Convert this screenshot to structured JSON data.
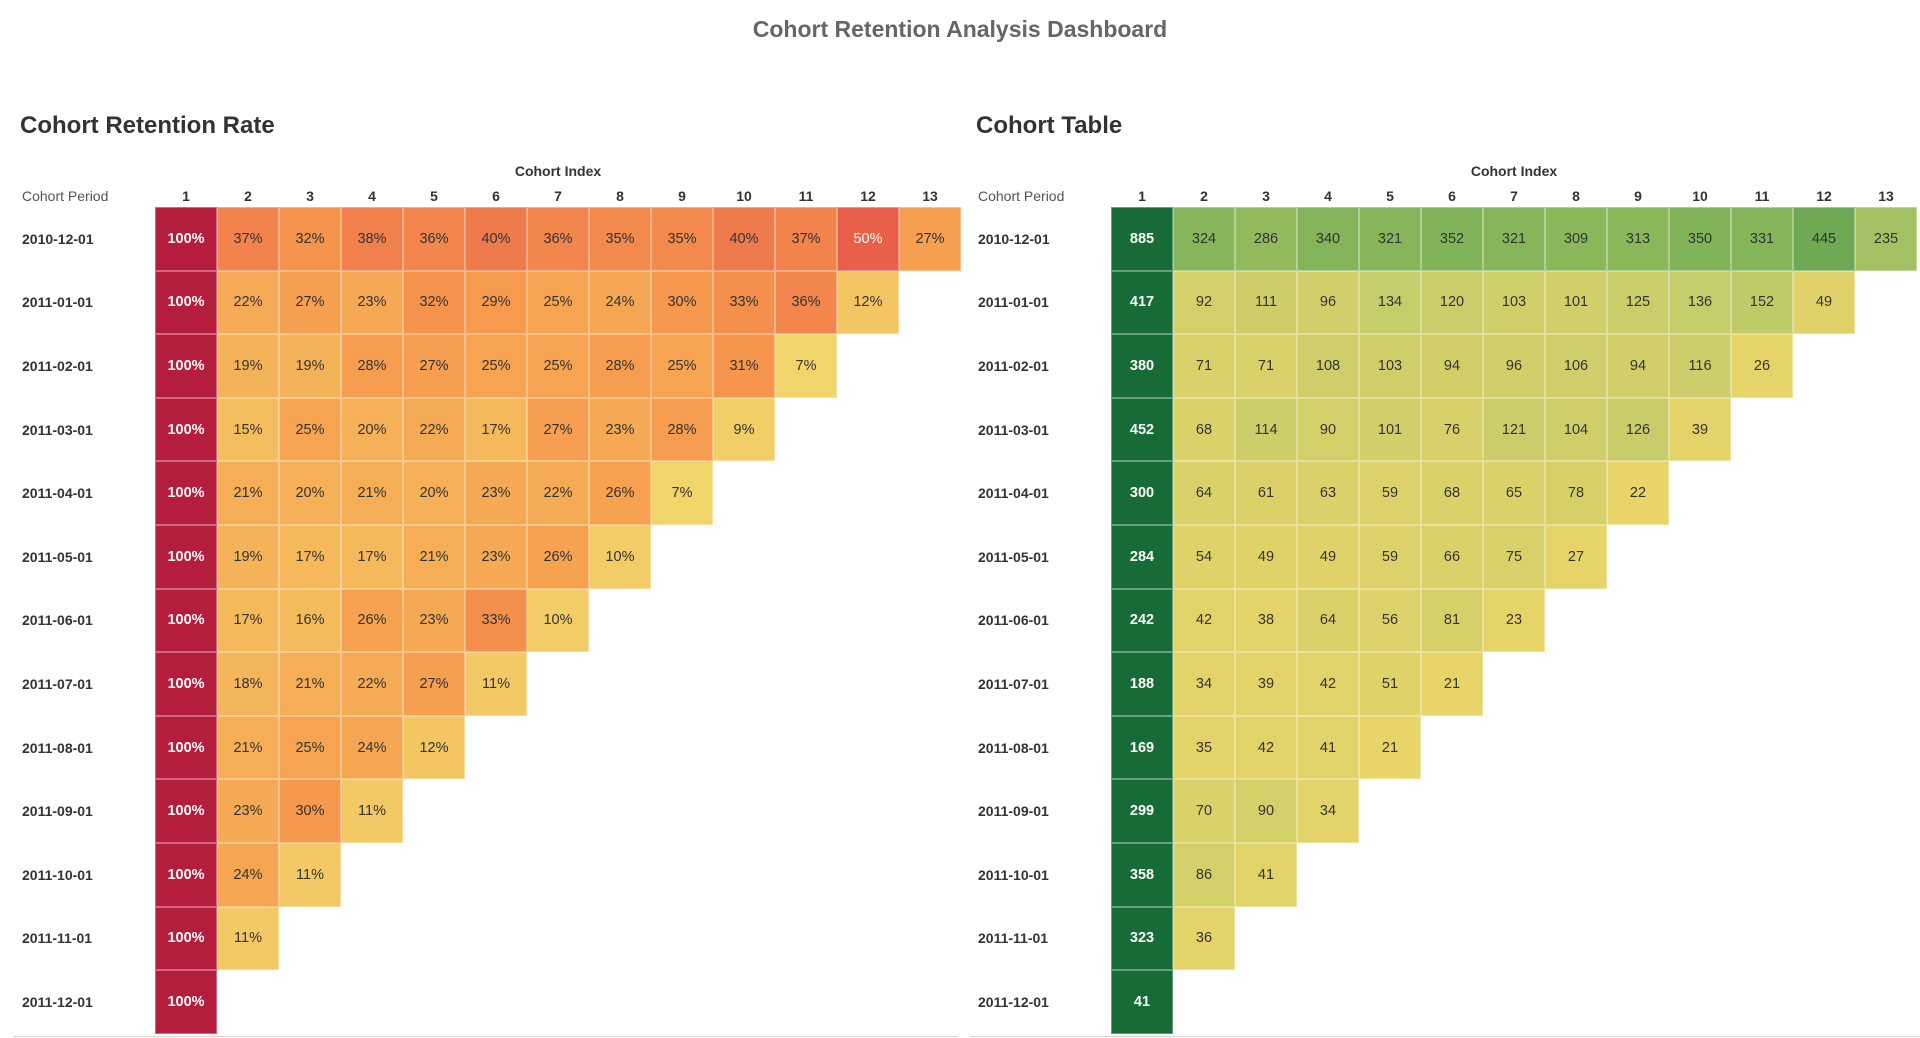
{
  "dashboard": {
    "title": "Cohort Retention Analysis Dashboard"
  },
  "periods": [
    "2010-12-01",
    "2011-01-01",
    "2011-02-01",
    "2011-03-01",
    "2011-04-01",
    "2011-05-01",
    "2011-06-01",
    "2011-07-01",
    "2011-08-01",
    "2011-09-01",
    "2011-10-01",
    "2011-11-01",
    "2011-12-01"
  ],
  "chart_data": [
    {
      "type": "heatmap",
      "title": "Cohort Retention Rate",
      "xlabel": "Cohort Index",
      "ylabel": "Cohort Period",
      "x": [
        "1",
        "2",
        "3",
        "4",
        "5",
        "6",
        "7",
        "8",
        "9",
        "10",
        "11",
        "12",
        "13"
      ],
      "unit": "%",
      "colorscale": "yellow-orange-red",
      "values": [
        [
          100,
          37,
          32,
          38,
          36,
          40,
          36,
          35,
          35,
          40,
          37,
          50,
          27
        ],
        [
          100,
          22,
          27,
          23,
          32,
          29,
          25,
          24,
          30,
          33,
          36,
          12
        ],
        [
          100,
          19,
          19,
          28,
          27,
          25,
          25,
          28,
          25,
          31,
          7
        ],
        [
          100,
          15,
          25,
          20,
          22,
          17,
          27,
          23,
          28,
          9
        ],
        [
          100,
          21,
          20,
          21,
          20,
          23,
          22,
          26,
          7
        ],
        [
          100,
          19,
          17,
          17,
          21,
          23,
          26,
          10
        ],
        [
          100,
          17,
          16,
          26,
          23,
          33,
          10
        ],
        [
          100,
          18,
          21,
          22,
          27,
          11
        ],
        [
          100,
          21,
          25,
          24,
          12
        ],
        [
          100,
          23,
          30,
          11
        ],
        [
          100,
          24,
          11
        ],
        [
          100,
          11
        ],
        [
          100
        ]
      ]
    },
    {
      "type": "heatmap",
      "title": "Cohort Table",
      "xlabel": "Cohort Index",
      "ylabel": "Cohort Period",
      "x": [
        "1",
        "2",
        "3",
        "4",
        "5",
        "6",
        "7",
        "8",
        "9",
        "10",
        "11",
        "12",
        "13"
      ],
      "unit": "",
      "colorscale": "yellow-green",
      "values": [
        [
          885,
          324,
          286,
          340,
          321,
          352,
          321,
          309,
          313,
          350,
          331,
          445,
          235
        ],
        [
          417,
          92,
          111,
          96,
          134,
          120,
          103,
          101,
          125,
          136,
          152,
          49
        ],
        [
          380,
          71,
          71,
          108,
          103,
          94,
          96,
          106,
          94,
          116,
          26
        ],
        [
          452,
          68,
          114,
          90,
          101,
          76,
          121,
          104,
          126,
          39
        ],
        [
          300,
          64,
          61,
          63,
          59,
          68,
          65,
          78,
          22
        ],
        [
          284,
          54,
          49,
          49,
          59,
          66,
          75,
          27
        ],
        [
          242,
          42,
          38,
          64,
          56,
          81,
          23
        ],
        [
          188,
          34,
          39,
          42,
          51,
          21
        ],
        [
          169,
          35,
          42,
          41,
          21
        ],
        [
          299,
          70,
          90,
          34
        ],
        [
          358,
          86,
          41
        ],
        [
          323,
          36
        ],
        [
          41
        ]
      ]
    }
  ]
}
